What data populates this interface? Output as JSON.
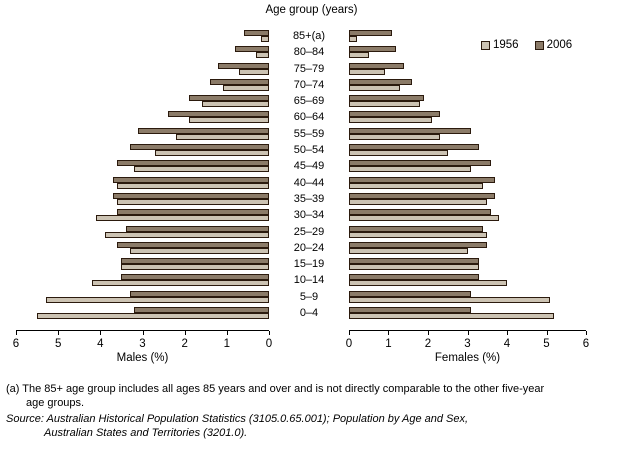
{
  "title": "Age group (years)",
  "legend": [
    {
      "label": "1956",
      "series": "1956"
    },
    {
      "label": "2006",
      "series": "2006"
    }
  ],
  "male_axis_label": "Males (%)",
  "female_axis_label": "Females (%)",
  "footnote": {
    "line1": "(a) The 85+ age group includes all ages 85 years and over and is not directly comparable to the other five-year",
    "line2": "age groups."
  },
  "source": {
    "line1": "Source: Australian Historical Population Statistics (3105.0.65.001); Population by Age and Sex,",
    "line2": "Australian States and Territories (3201.0)."
  },
  "chart_data": {
    "type": "bar",
    "subtype": "population_pyramid",
    "title": "Age group (years)",
    "categories": [
      "85+(a)",
      "80–84",
      "75–79",
      "70–74",
      "65–69",
      "60–64",
      "55–59",
      "50–54",
      "45–49",
      "40–44",
      "35–39",
      "30–34",
      "25–29",
      "20–24",
      "15–19",
      "10–14",
      "5–9",
      "0–4"
    ],
    "series": [
      {
        "name": "2006",
        "males": [
          0.6,
          0.8,
          1.2,
          1.4,
          1.9,
          2.4,
          3.1,
          3.3,
          3.6,
          3.7,
          3.7,
          3.6,
          3.4,
          3.6,
          3.5,
          3.5,
          3.3,
          3.2
        ],
        "females": [
          1.1,
          1.2,
          1.4,
          1.6,
          1.9,
          2.3,
          3.1,
          3.3,
          3.6,
          3.7,
          3.7,
          3.6,
          3.4,
          3.5,
          3.3,
          3.3,
          3.1,
          3.1
        ]
      },
      {
        "name": "1956",
        "males": [
          0.2,
          0.3,
          0.7,
          1.1,
          1.6,
          1.9,
          2.2,
          2.7,
          3.2,
          3.6,
          3.6,
          4.1,
          3.9,
          3.3,
          3.5,
          4.2,
          5.3,
          5.5
        ],
        "females": [
          0.2,
          0.5,
          0.9,
          1.3,
          1.8,
          2.1,
          2.3,
          2.5,
          3.1,
          3.4,
          3.5,
          3.8,
          3.5,
          3.0,
          3.3,
          4.0,
          5.1,
          5.2
        ]
      }
    ],
    "male_axis": {
      "label": "Males (%)",
      "ticks": [
        6,
        5,
        4,
        3,
        2,
        1,
        0
      ],
      "max": 6
    },
    "female_axis": {
      "label": "Females (%)",
      "ticks": [
        0,
        1,
        2,
        3,
        4,
        5,
        6
      ],
      "max": 6
    },
    "legend_position": "top-right",
    "grid": false,
    "colors": {
      "1956": "#ccc3b3",
      "2006": "#8b7b68",
      "outline": "#2b1a0d"
    }
  }
}
